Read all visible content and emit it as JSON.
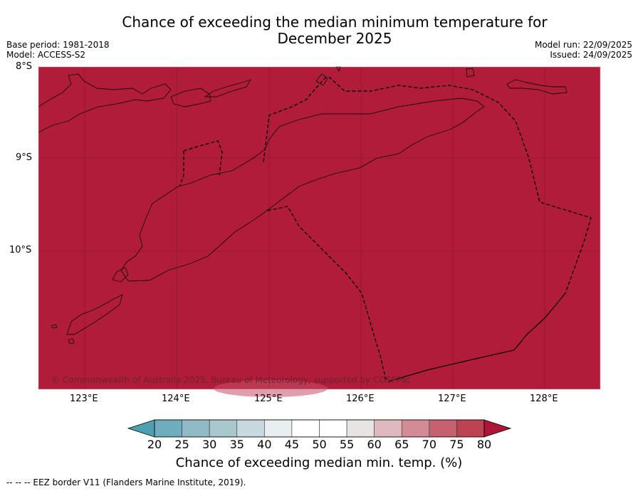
{
  "title_line1": "Chance of exceeding the median minimum temperature for",
  "title_line2": "December 2025",
  "meta": {
    "base_period": "Base period: 1981-2018",
    "model": "Model: ACCESS-S2",
    "model_run": "Model run: 22/09/2025",
    "issued": "Issued: 24/09/2025"
  },
  "map": {
    "fill_color": "#b01c39",
    "lat_labels": [
      "8°S",
      "9°S",
      "10°S"
    ],
    "lon_labels": [
      "123°E",
      "124°E",
      "125°E",
      "126°E",
      "127°E",
      "128°E"
    ],
    "copyright": "© Commonwealth of Australia 2025, Bureau of Meteorology, supported by COSPPac"
  },
  "colorbar": {
    "ticks": [
      "20",
      "25",
      "30",
      "35",
      "40",
      "45",
      "50",
      "55",
      "60",
      "65",
      "70",
      "75",
      "80"
    ],
    "colors": [
      "#4f9fb2",
      "#6eadbd",
      "#8fbac6",
      "#a9c8ce",
      "#c7d9de",
      "#e7eff1",
      "#ffffff",
      "#ffffff",
      "#e8e4e4",
      "#e0b8c0",
      "#d38b96",
      "#c6626f",
      "#bd4353",
      "#ad1636"
    ],
    "label": "Chance of exceeding median min. temp. (%)"
  },
  "footnote": "--  --  -- EEZ border V11 (Flanders Marine Institute, 2019)."
}
